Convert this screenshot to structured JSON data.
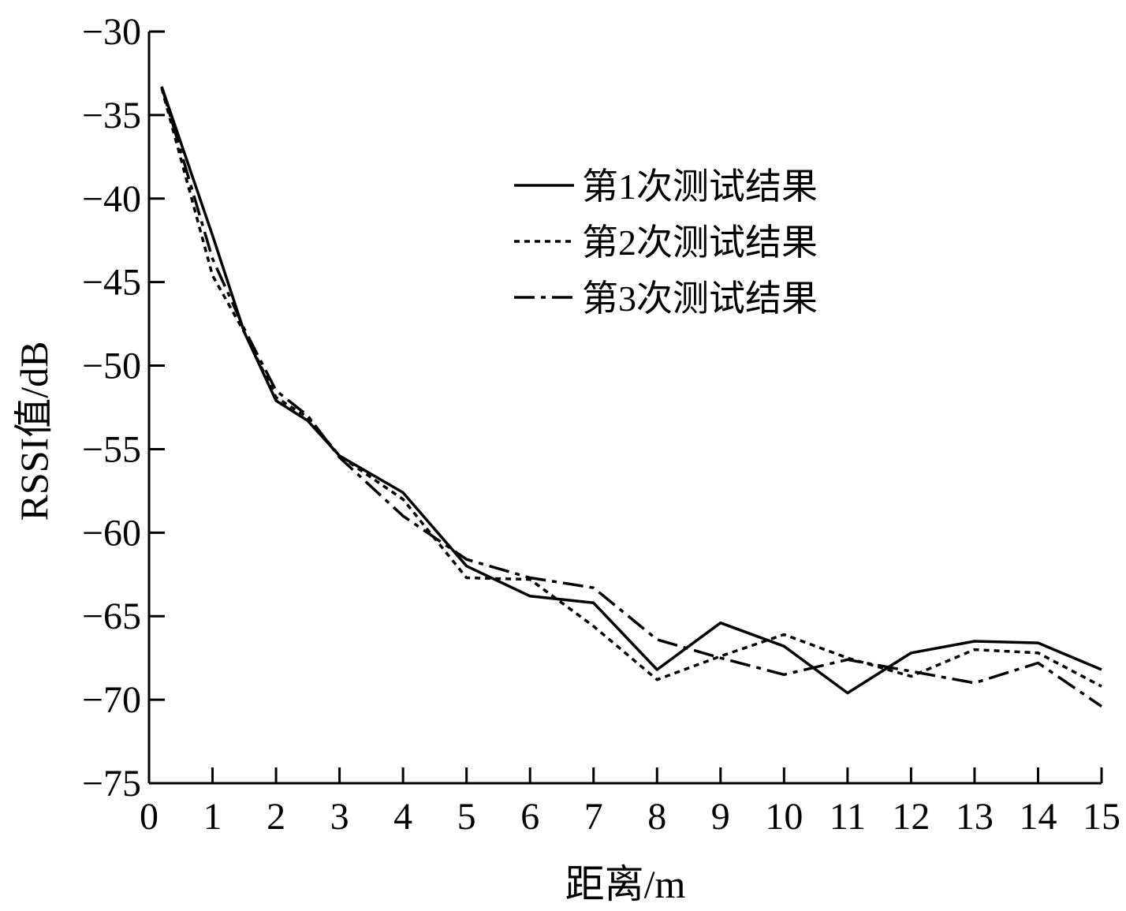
{
  "chart_data": {
    "type": "line",
    "xlabel": "距离/m",
    "ylabel": "RSSI值/dB",
    "xlim": [
      0,
      15
    ],
    "ylim": [
      -75,
      -30
    ],
    "xticks": [
      "0",
      "1",
      "2",
      "3",
      "4",
      "5",
      "6",
      "7",
      "8",
      "9",
      "10",
      "11",
      "12",
      "13",
      "14",
      "15"
    ],
    "yticks": [
      "−30",
      "−35",
      "−40",
      "−45",
      "−50",
      "−55",
      "−60",
      "−65",
      "−70",
      "−75"
    ],
    "x": [
      0.2,
      1,
      1.5,
      2,
      2.5,
      3,
      4,
      5,
      6,
      7,
      8,
      9,
      10,
      11,
      12,
      13,
      14,
      15
    ],
    "series": [
      {
        "name": "第1次测试结果",
        "style": "solid",
        "values": [
          -33.3,
          -42.2,
          -48.0,
          -52.1,
          -53.3,
          -55.4,
          -57.6,
          -62.0,
          -63.8,
          -64.2,
          -68.2,
          -65.4,
          -66.8,
          -69.6,
          -67.2,
          -66.5,
          -66.6,
          -68.2
        ]
      },
      {
        "name": "第2次测试结果",
        "style": "dotted",
        "values": [
          -33.4,
          -44.6,
          -48.0,
          -51.9,
          -53.1,
          -55.4,
          -58.0,
          -62.7,
          -62.8,
          -65.6,
          -68.8,
          -67.4,
          -66.1,
          -67.5,
          -68.6,
          -67.0,
          -67.2,
          -69.2
        ]
      },
      {
        "name": "第3次测试结果",
        "style": "dash-dot",
        "values": [
          -33.3,
          -43.6,
          -47.8,
          -51.5,
          -53.0,
          -55.5,
          -59.0,
          -61.6,
          -62.7,
          -63.3,
          -66.4,
          -67.5,
          -68.5,
          -67.6,
          -68.3,
          -69.0,
          -67.8,
          -70.4
        ]
      }
    ],
    "legend_position": "top-right",
    "grid": false
  }
}
